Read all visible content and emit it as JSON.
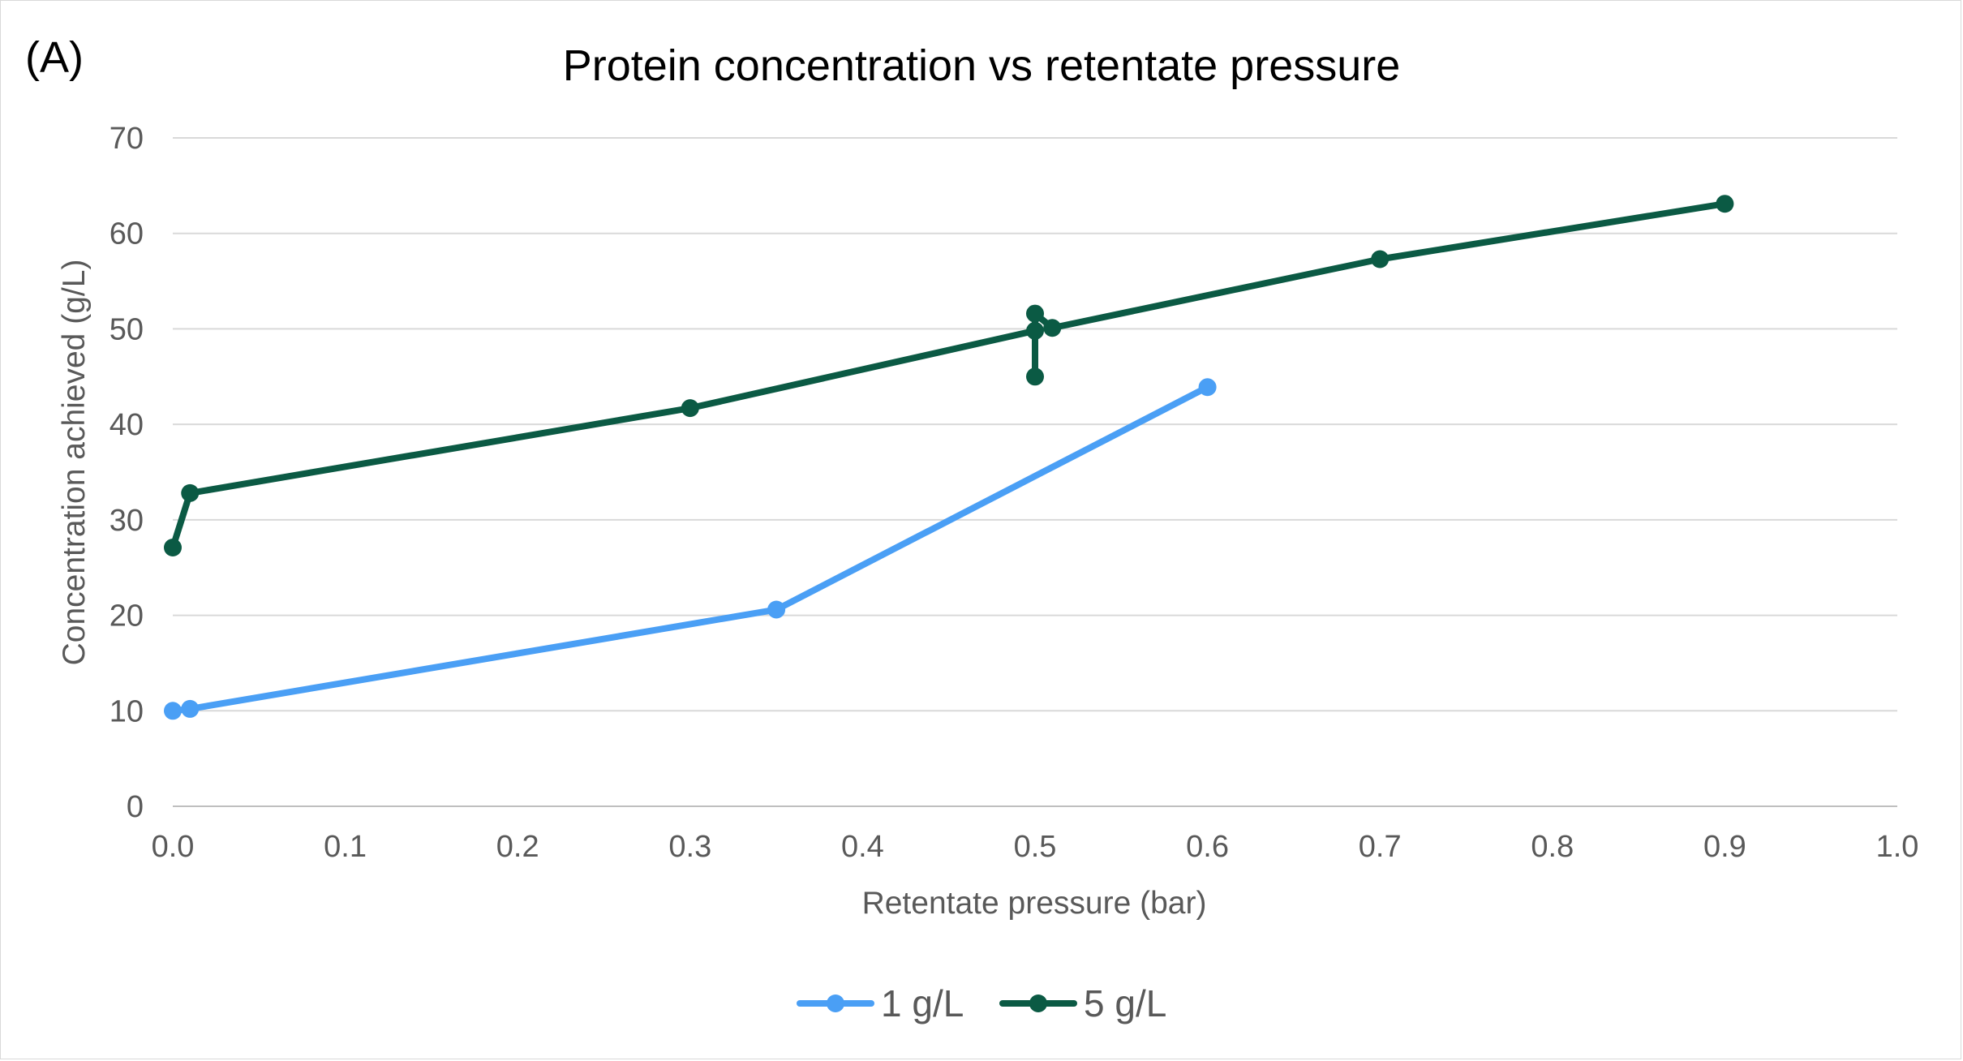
{
  "panel_label": "(A)",
  "chart_data": {
    "type": "line",
    "title": "Protein concentration vs retentate pressure",
    "xlabel": "Retentate pressure (bar)",
    "ylabel": "Concentration achieved (g/L)",
    "xlim": [
      0,
      1.0
    ],
    "ylim": [
      0,
      70
    ],
    "x_ticks": [
      "0.0",
      "0.1",
      "0.2",
      "0.3",
      "0.4",
      "0.5",
      "0.6",
      "0.7",
      "0.8",
      "0.9",
      "1.0"
    ],
    "y_ticks": [
      "0",
      "10",
      "20",
      "30",
      "40",
      "50",
      "60",
      "70"
    ],
    "grid": true,
    "legend_position": "bottom",
    "series": [
      {
        "name": "1 g/L",
        "color": "#4a9ff5",
        "points": [
          {
            "x": 0.0,
            "y": 10.0
          },
          {
            "x": 0.01,
            "y": 10.2
          },
          {
            "x": 0.35,
            "y": 20.6
          },
          {
            "x": 0.6,
            "y": 43.9
          }
        ]
      },
      {
        "name": "5 g/L",
        "color": "#0b5a44",
        "points": [
          {
            "x": 0.0,
            "y": 27.1
          },
          {
            "x": 0.01,
            "y": 32.8
          },
          {
            "x": 0.3,
            "y": 41.7
          },
          {
            "x": 0.5,
            "y": 49.8
          },
          {
            "x": 0.5,
            "y": 45.0
          },
          {
            "x": 0.5,
            "y": 51.6
          },
          {
            "x": 0.51,
            "y": 50.1
          },
          {
            "x": 0.7,
            "y": 57.3
          },
          {
            "x": 0.9,
            "y": 63.1
          }
        ]
      }
    ]
  }
}
